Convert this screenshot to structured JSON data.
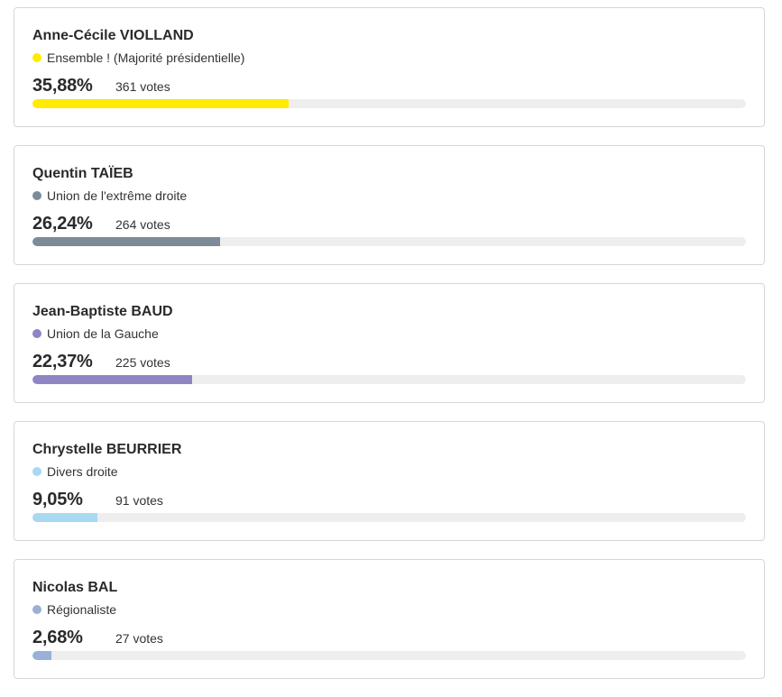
{
  "candidates": [
    {
      "name": "Anne-Cécile VIOLLAND",
      "party": "Ensemble ! (Majorité présidentielle)",
      "percent_label": "35,88%",
      "votes_label": "361 votes",
      "percent": 35.88,
      "color": "#ffeb00"
    },
    {
      "name": "Quentin TAÏEB",
      "party": "Union de l'extrême droite",
      "percent_label": "26,24%",
      "votes_label": "264 votes",
      "percent": 26.24,
      "color": "#7c8b97"
    },
    {
      "name": "Jean-Baptiste BAUD",
      "party": "Union de la Gauche",
      "percent_label": "22,37%",
      "votes_label": "225 votes",
      "percent": 22.37,
      "color": "#9184c4"
    },
    {
      "name": "Chrystelle BEURRIER",
      "party": "Divers droite",
      "percent_label": "9,05%",
      "votes_label": "91 votes",
      "percent": 9.05,
      "color": "#a8d8f2"
    },
    {
      "name": "Nicolas BAL",
      "party": "Régionaliste",
      "percent_label": "2,68%",
      "votes_label": "27 votes",
      "percent": 2.68,
      "color": "#9bb0d6"
    }
  ]
}
